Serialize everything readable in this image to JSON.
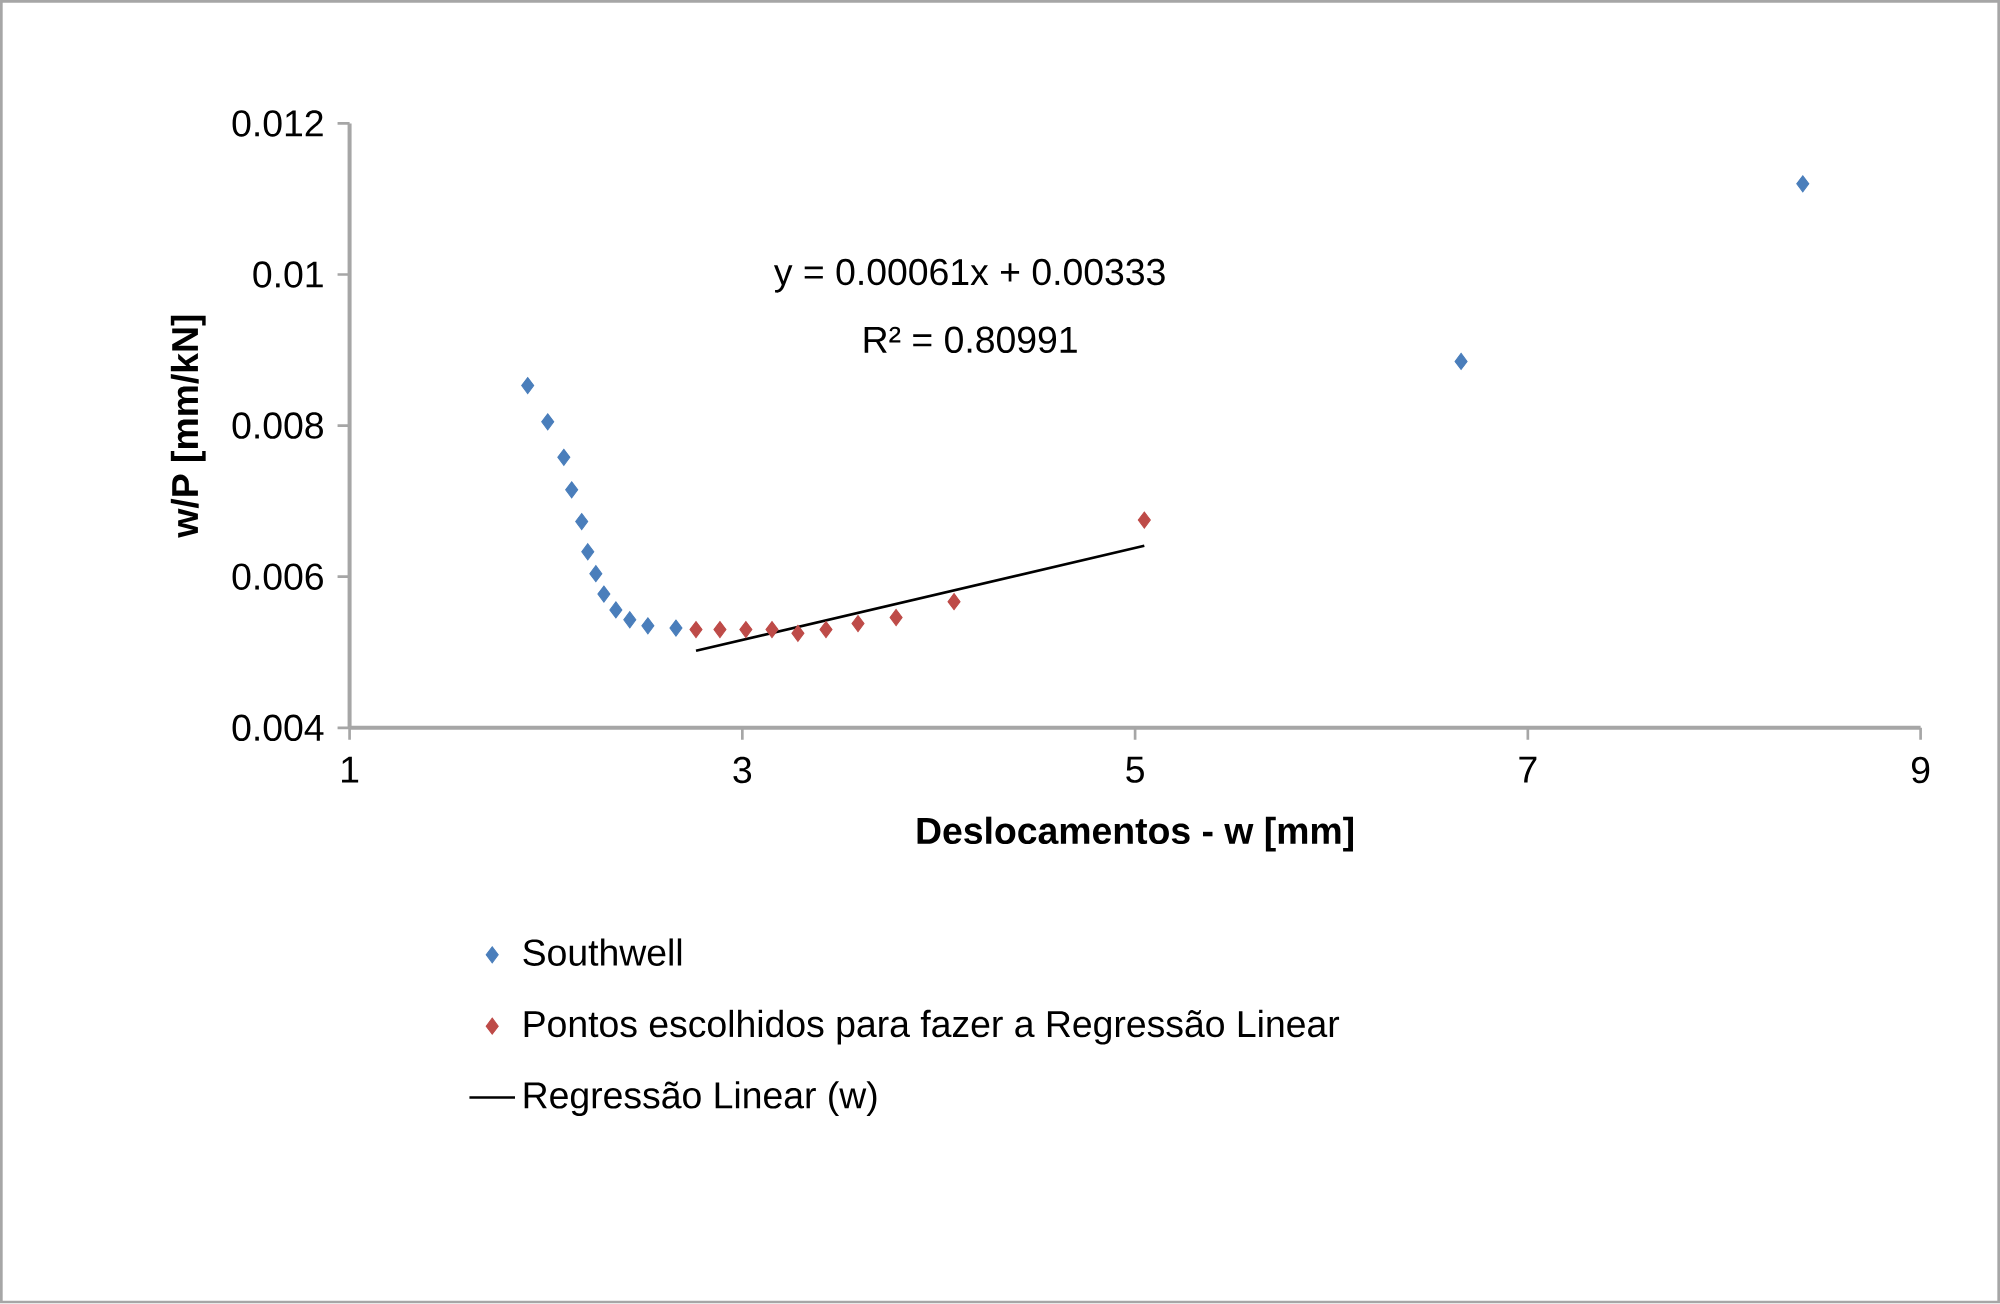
{
  "chart_data": {
    "type": "scatter",
    "xlabel": "Deslocamentos - w [mm]",
    "ylabel": "w/P [mm/kN]",
    "annotations": [
      "y = 0.00061x + 0.00333",
      "R² = 0.80991"
    ],
    "xlim": [
      1,
      9
    ],
    "xticks": [
      1,
      3,
      5,
      7,
      9
    ],
    "ylim": [
      0.004,
      0.012
    ],
    "yticks": [
      0.004,
      0.006,
      0.008,
      0.01,
      0.012
    ],
    "grid": false,
    "legend": "bottom",
    "marker": "diamond",
    "series": [
      {
        "name": "Southwell",
        "color": "#4a7ebb",
        "x": [
          1.907,
          2.009,
          2.091,
          2.131,
          2.182,
          2.213,
          2.254,
          2.295,
          2.356,
          2.427,
          2.519,
          2.662,
          6.66,
          8.4
        ],
        "values": [
          0.00853,
          0.00805,
          0.00758,
          0.00715,
          0.00673,
          0.00633,
          0.00604,
          0.00577,
          0.00556,
          0.00543,
          0.00535,
          0.00532,
          0.00885,
          0.0112
        ]
      },
      {
        "name": "Pontos escolhidos para fazer a Regressão Linear",
        "color": "#be4b48",
        "x": [
          2.764,
          2.886,
          3.018,
          3.151,
          3.283,
          3.426,
          3.589,
          3.783,
          4.078,
          5.047
        ],
        "values": [
          0.0053,
          0.0053,
          0.0053,
          0.0053,
          0.00525,
          0.0053,
          0.00538,
          0.00546,
          0.00567,
          0.00675
        ]
      },
      {
        "name": "Regressão Linear (w)",
        "type": "line",
        "color": "#000000",
        "marker": "none",
        "line_style": "solid",
        "x": [
          2.764,
          5.047
        ],
        "values": [
          0.00502,
          0.00641
        ]
      }
    ]
  }
}
